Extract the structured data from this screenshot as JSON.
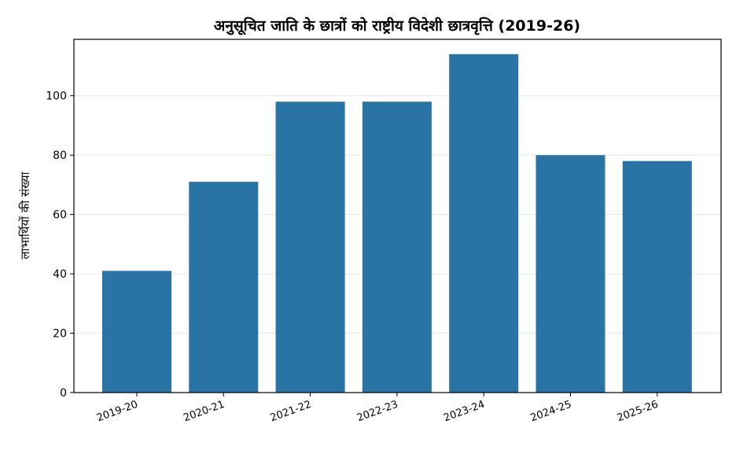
{
  "chart_data": {
    "type": "bar",
    "title": "अनुसूचित जाति के छात्रों को राष्ट्रीय विदेशी छात्रवृत्ति (2019-26)",
    "xlabel": "",
    "ylabel": "लाभार्थियों की संख्या",
    "categories": [
      "2019-20",
      "2020-21",
      "2021-22",
      "2022-23",
      "2023-24",
      "2024-25",
      "2025-26"
    ],
    "values": [
      41,
      71,
      98,
      98,
      114,
      80,
      78
    ],
    "ylim": [
      0,
      119
    ],
    "yticks": [
      0,
      20,
      40,
      60,
      80,
      100
    ],
    "grid": "horizontal",
    "bar_color": "#2a73a5",
    "grid_color": "#e6e6e6"
  }
}
